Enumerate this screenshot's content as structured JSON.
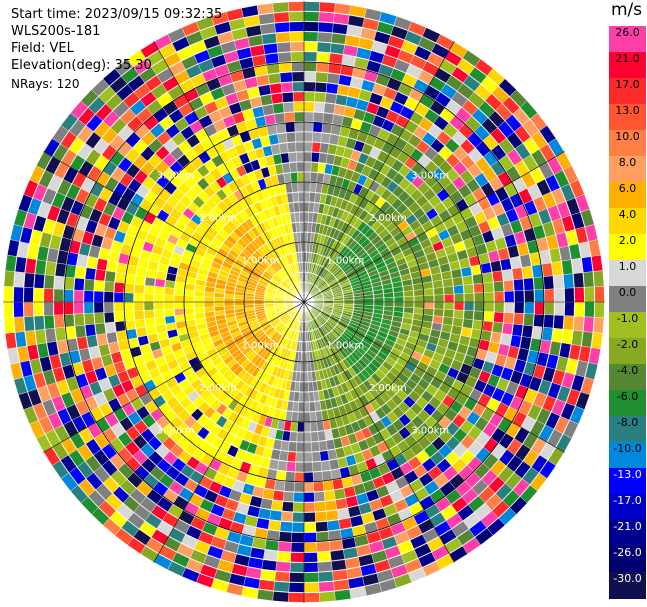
{
  "header": {
    "start_time": "Start time: 2023/09/15 09:32:35",
    "station": "WLS200s-181",
    "field": "Field: VEL",
    "elevation": "Elevation(deg): 35.30",
    "nrays": "NRays: 120"
  },
  "colorbar": {
    "title": "m/s",
    "levels": [
      {
        "label": "26.0",
        "color": "#ff3fa8"
      },
      {
        "label": "21.0",
        "color": "#ff0033"
      },
      {
        "label": "17.0",
        "color": "#ff2a2a"
      },
      {
        "label": "13.0",
        "color": "#ff5533"
      },
      {
        "label": "10.0",
        "color": "#ff7f45"
      },
      {
        "label": "8.0",
        "color": "#ffa060"
      },
      {
        "label": "6.0",
        "color": "#ffb000"
      },
      {
        "label": "4.0",
        "color": "#ffd800"
      },
      {
        "label": "2.0",
        "color": "#ffff00"
      },
      {
        "label": "1.0",
        "color": "#d8d8d8"
      },
      {
        "label": "0.0",
        "color": "#808080"
      },
      {
        "label": "-1.0",
        "color": "#a0c020"
      },
      {
        "label": "-2.0",
        "color": "#88aa22"
      },
      {
        "label": "-4.0",
        "color": "#558833"
      },
      {
        "label": "-6.0",
        "color": "#1f8f2f"
      },
      {
        "label": "-8.0",
        "color": "#2a8080"
      },
      {
        "label": "-10.0",
        "color": "#0088dd"
      },
      {
        "label": "-13.0",
        "color": "#0000ff"
      },
      {
        "label": "-17.0",
        "color": "#0000c8"
      },
      {
        "label": "-21.0",
        "color": "#000090"
      },
      {
        "label": "-26.0",
        "color": "#000070"
      },
      {
        "label": "-30.0",
        "color": "#101050"
      }
    ]
  },
  "range_labels": [
    "1.00km",
    "2.00km",
    "3.00km"
  ]
}
